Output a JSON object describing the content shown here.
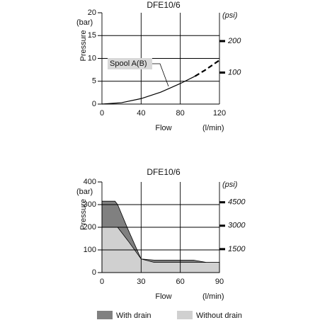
{
  "chart_data": [
    {
      "type": "line",
      "title": "DFE10/6",
      "x_label": "Flow",
      "x_unit": "(l/min)",
      "y_label": "Pressure",
      "y_unit": "(bar)",
      "y2_unit": "(psi)",
      "annotation": "Spool A(B)",
      "x": [
        0,
        20,
        40,
        60,
        80,
        95,
        105,
        120
      ],
      "series": [
        {
          "name": "Spool A(B)",
          "color": "#000000",
          "values": [
            0,
            0.3,
            1.2,
            2.6,
            4.5,
            6.1,
            null,
            null
          ]
        },
        {
          "color": "#000000",
          "dashed": true,
          "values": [
            null,
            null,
            null,
            null,
            null,
            6.1,
            7.4,
            9.6
          ]
        }
      ],
      "xlim": [
        0,
        120
      ],
      "xticks": [
        0,
        40,
        80,
        120
      ],
      "ylim": [
        0,
        20
      ],
      "yticks": [
        0,
        5,
        10,
        15,
        20
      ],
      "y2lim": [
        0,
        290
      ],
      "y2ticks": [
        100,
        200
      ],
      "grid": true
    },
    {
      "type": "area",
      "title": "DFE10/6",
      "x_label": "Flow",
      "x_unit": "(l/min)",
      "y_label": "Pressure",
      "y_unit": "(bar)",
      "y2_unit": "(psi)",
      "x": [
        0,
        10,
        12,
        20,
        30,
        40,
        70,
        80,
        90
      ],
      "series": [
        {
          "name": "With drain",
          "color": "#808080",
          "values": [
            315,
            315,
            300,
            190,
            60,
            55,
            55,
            45,
            45
          ]
        },
        {
          "name": "Without drain",
          "color": "#d0d0d0",
          "values": [
            200,
            200,
            200,
            140,
            60,
            45,
            45,
            45,
            45
          ]
        }
      ],
      "xlim": [
        0,
        90
      ],
      "xticks": [
        0,
        30,
        60,
        90
      ],
      "ylim": [
        0,
        400
      ],
      "yticks": [
        0,
        100,
        200,
        300,
        400
      ],
      "y2lim": [
        0,
        5801
      ],
      "y2ticks": [
        1500,
        3000,
        4500
      ],
      "grid": true,
      "legend": "bottom"
    }
  ]
}
